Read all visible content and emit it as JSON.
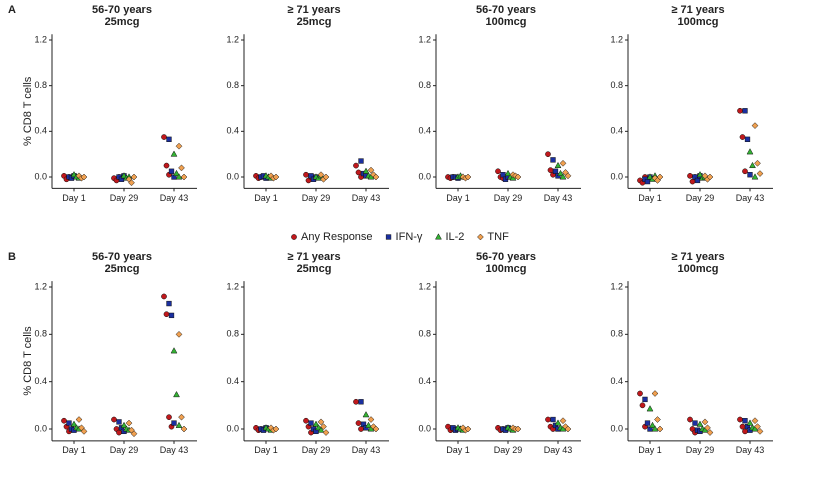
{
  "chart_data": {
    "type": "strip",
    "ylabel": "% CD8 T cells",
    "categories": [
      "Day 1",
      "Day 29",
      "Day 43"
    ],
    "ylim": [
      -0.1,
      1.25
    ],
    "yticks": [
      {
        "value": 0,
        "label": "0.0"
      },
      0.4,
      0.8,
      1.2
    ],
    "series": [
      {
        "name": "Any Response",
        "color": "#c0181c",
        "marker": "circle"
      },
      {
        "name": "IFN-γ",
        "color": "#1a2fa0",
        "marker": "square"
      },
      {
        "name": "IL-2",
        "color": "#33b233",
        "marker": "triangle"
      },
      {
        "name": "TNF",
        "color": "#f0a050",
        "marker": "diamond"
      }
    ],
    "rows": [
      {
        "label": "A",
        "panels": [
          {
            "title": [
              "56-70 years",
              "25mcg"
            ],
            "values": [
              [
                [
                  0.01,
                  -0.02,
                  0.0
                ],
                [
                  -0.01,
                  -0.03,
                  0.0
                ],
                [
                  0.35,
                  0.1,
                  0.02
                ]
              ],
              [
                [
                  0.0,
                  -0.01,
                  0.01
                ],
                [
                  0.0,
                  -0.02,
                  0.01
                ],
                [
                  0.33,
                  0.05,
                  0.0
                ]
              ],
              [
                [
                  0.02,
                  0.0,
                  -0.01
                ],
                [
                  0.01,
                  -0.01,
                  0.0
                ],
                [
                  0.2,
                  0.03,
                  0.0
                ]
              ],
              [
                [
                  0.01,
                  -0.01,
                  0.0
                ],
                [
                  -0.02,
                  -0.05,
                  0.0
                ],
                [
                  0.27,
                  0.08,
                  0.0
                ]
              ]
            ]
          },
          {
            "title": [
              "≥ 71 years",
              "25mcg"
            ],
            "values": [
              [
                [
                  0.01,
                  -0.01,
                  0.0
                ],
                [
                  0.02,
                  -0.03,
                  0.0
                ],
                [
                  0.1,
                  0.04,
                  0.0
                ]
              ],
              [
                [
                  0.0,
                  0.01,
                  -0.01
                ],
                [
                  0.01,
                  -0.02,
                  0.0
                ],
                [
                  0.14,
                  0.03,
                  0.01
                ]
              ],
              [
                [
                  0.01,
                  0.0,
                  -0.01
                ],
                [
                  0.0,
                  -0.01,
                  0.01
                ],
                [
                  0.05,
                  0.01,
                  0.0
                ]
              ],
              [
                [
                  0.01,
                  -0.01,
                  0.0
                ],
                [
                  0.02,
                  -0.02,
                  0.0
                ],
                [
                  0.06,
                  0.02,
                  0.0
                ]
              ]
            ]
          },
          {
            "title": [
              "56-70 years",
              "100mcg"
            ],
            "values": [
              [
                [
                  0.0,
                  -0.01,
                  0.0
                ],
                [
                  0.05,
                  0.0,
                  -0.01
                ],
                [
                  0.2,
                  0.06,
                  0.02
                ]
              ],
              [
                [
                  0.0,
                  0.0,
                  -0.01
                ],
                [
                  0.02,
                  -0.02,
                  0.0
                ],
                [
                  0.15,
                  0.05,
                  0.01
                ]
              ],
              [
                [
                  0.0,
                  0.01,
                  0.0
                ],
                [
                  0.03,
                  0.0,
                  -0.01
                ],
                [
                  0.1,
                  0.03,
                  0.0
                ]
              ],
              [
                [
                  0.0,
                  -0.01,
                  0.0
                ],
                [
                  0.02,
                  0.01,
                  0.0
                ],
                [
                  0.12,
                  0.04,
                  0.01
                ]
              ]
            ]
          },
          {
            "title": [
              "≥ 71 years",
              "100mcg"
            ],
            "values": [
              [
                [
                  -0.03,
                  -0.05,
                  0.0
                ],
                [
                  0.01,
                  -0.04,
                  0.0
                ],
                [
                  0.58,
                  0.35,
                  0.05
                ]
              ],
              [
                [
                  -0.02,
                  -0.04,
                  0.0
                ],
                [
                  0.0,
                  -0.03,
                  0.01
                ],
                [
                  0.58,
                  0.33,
                  0.02
                ]
              ],
              [
                [
                  0.0,
                  -0.02,
                  0.01
                ],
                [
                  0.02,
                  -0.01,
                  0.0
                ],
                [
                  0.22,
                  0.1,
                  0.0
                ]
              ],
              [
                [
                  -0.01,
                  -0.03,
                  0.0
                ],
                [
                  0.01,
                  -0.02,
                  0.0
                ],
                [
                  0.45,
                  0.12,
                  0.03
                ]
              ]
            ]
          }
        ]
      },
      {
        "label": "B",
        "panels": [
          {
            "title": [
              "56-70 years",
              "25mcg"
            ],
            "values": [
              [
                [
                  0.07,
                  0.02,
                  -0.02
                ],
                [
                  0.08,
                  0.0,
                  -0.03
                ],
                [
                  1.12,
                  0.97,
                  0.1,
                  0.02
                ]
              ],
              [
                [
                  0.05,
                  0.0,
                  -0.01
                ],
                [
                  0.06,
                  0.01,
                  -0.02
                ],
                [
                  1.06,
                  0.96,
                  0.05
                ]
              ],
              [
                [
                  0.04,
                  0.01,
                  0.0
                ],
                [
                  0.03,
                  0.0,
                  -0.01
                ],
                [
                  0.66,
                  0.29,
                  0.03
                ]
              ],
              [
                [
                  0.08,
                  0.01,
                  -0.02
                ],
                [
                  0.05,
                  -0.01,
                  -0.04
                ],
                [
                  0.8,
                  0.1,
                  0.0
                ]
              ]
            ]
          },
          {
            "title": [
              "≥ 71 years",
              "25mcg"
            ],
            "values": [
              [
                [
                  0.01,
                  -0.01,
                  0.0
                ],
                [
                  0.07,
                  0.02,
                  -0.03
                ],
                [
                  0.23,
                  0.05,
                  0.0
                ]
              ],
              [
                [
                  0.0,
                  -0.01,
                  0.01
                ],
                [
                  0.05,
                  0.0,
                  -0.02
                ],
                [
                  0.23,
                  0.04,
                  0.01
                ]
              ],
              [
                [
                  0.01,
                  0.0,
                  -0.01
                ],
                [
                  0.04,
                  0.01,
                  -0.01
                ],
                [
                  0.12,
                  0.03,
                  0.0
                ]
              ],
              [
                [
                  0.01,
                  -0.01,
                  0.0
                ],
                [
                  0.06,
                  0.02,
                  -0.03
                ],
                [
                  0.08,
                  0.02,
                  0.0
                ]
              ]
            ]
          },
          {
            "title": [
              "56-70 years",
              "100mcg"
            ],
            "values": [
              [
                [
                  0.02,
                  -0.01,
                  0.0
                ],
                [
                  0.01,
                  -0.01,
                  0.0
                ],
                [
                  0.08,
                  0.02,
                  0.0
                ]
              ],
              [
                [
                  0.01,
                  -0.01,
                  0.0
                ],
                [
                  0.0,
                  -0.01,
                  0.01
                ],
                [
                  0.08,
                  0.03,
                  0.0
                ]
              ],
              [
                [
                  0.01,
                  0.0,
                  -0.01
                ],
                [
                  0.01,
                  0.0,
                  -0.01
                ],
                [
                  0.05,
                  0.01,
                  0.0
                ]
              ],
              [
                [
                  0.01,
                  -0.01,
                  0.0
                ],
                [
                  0.01,
                  0.0,
                  0.0
                ],
                [
                  0.07,
                  0.02,
                  0.0
                ]
              ]
            ]
          },
          {
            "title": [
              "≥ 71 years",
              "100mcg"
            ],
            "values": [
              [
                [
                  0.3,
                  0.2,
                  0.02
                ],
                [
                  0.08,
                  0.0,
                  -0.03
                ],
                [
                  0.08,
                  0.02,
                  -0.02
                ]
              ],
              [
                [
                  0.25,
                  0.05,
                  0.0
                ],
                [
                  0.05,
                  -0.01,
                  -0.02
                ],
                [
                  0.07,
                  0.02,
                  -0.01
                ]
              ],
              [
                [
                  0.17,
                  0.03,
                  0.0
                ],
                [
                  0.04,
                  0.0,
                  -0.01
                ],
                [
                  0.05,
                  0.01,
                  0.0
                ]
              ],
              [
                [
                  0.3,
                  0.08,
                  0.0
                ],
                [
                  0.06,
                  0.01,
                  -0.03
                ],
                [
                  0.07,
                  0.02,
                  -0.02
                ]
              ]
            ]
          }
        ]
      }
    ]
  }
}
